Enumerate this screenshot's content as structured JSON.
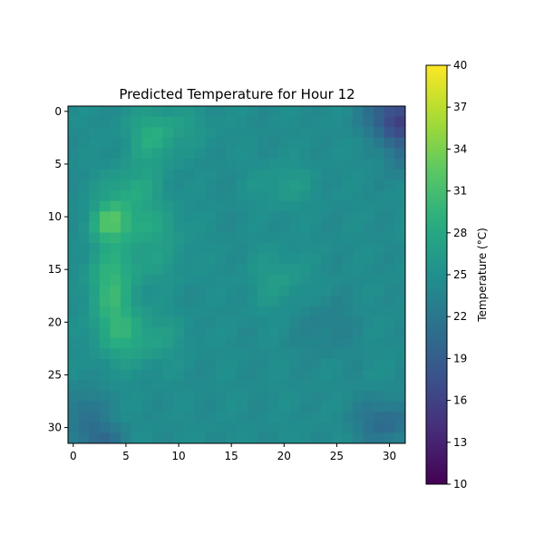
{
  "chart_data": {
    "type": "heatmap",
    "title": "Predicted Temperature for Hour 12",
    "xlabel": "",
    "ylabel": "",
    "xlim": [
      -0.5,
      31.5
    ],
    "ylim": [
      31.5,
      -0.5
    ],
    "x_ticks": [
      0,
      5,
      10,
      15,
      20,
      25,
      30
    ],
    "y_ticks": [
      0,
      5,
      10,
      15,
      20,
      25,
      30
    ],
    "colormap": "viridis",
    "grid": false,
    "colorbar": {
      "label": "Temperature (°C)",
      "vmin": 10,
      "vmax": 40,
      "ticks": [
        10,
        13,
        16,
        19,
        22,
        25,
        28,
        31,
        34,
        37,
        40
      ]
    },
    "grid_size": [
      32,
      32
    ],
    "hotspots": [
      {
        "x": 3.5,
        "y": 10.5,
        "sx": 1.3,
        "sy": 1.3,
        "amp": 6.0
      },
      {
        "x": 3.5,
        "y": 16.5,
        "sx": 1.5,
        "sy": 2.5,
        "amp": 4.0
      },
      {
        "x": 5.5,
        "y": 7.5,
        "sx": 2.0,
        "sy": 1.6,
        "amp": 3.5
      },
      {
        "x": 7.5,
        "y": 3.0,
        "sx": 1.5,
        "sy": 1.8,
        "amp": 3.0
      },
      {
        "x": 7.0,
        "y": 11.0,
        "sx": 2.5,
        "sy": 1.5,
        "amp": 3.0
      },
      {
        "x": 6.5,
        "y": 14.5,
        "sx": 3.0,
        "sy": 1.5,
        "amp": 2.0
      },
      {
        "x": 6.5,
        "y": 21.5,
        "sx": 2.5,
        "sy": 1.8,
        "amp": 3.0
      },
      {
        "x": 4.0,
        "y": 20.0,
        "sx": 1.5,
        "sy": 2.5,
        "amp": 2.5
      },
      {
        "x": 9.0,
        "y": 1.5,
        "sx": 3.0,
        "sy": 1.5,
        "amp": 2.0
      },
      {
        "x": 20.0,
        "y": 7.0,
        "sx": 2.0,
        "sy": 1.5,
        "amp": 2.0
      },
      {
        "x": 19.5,
        "y": 16.0,
        "sx": 2.0,
        "sy": 2.0,
        "amp": 2.0
      },
      {
        "x": 30.5,
        "y": 0.5,
        "sx": 2.0,
        "sy": 1.5,
        "amp": -7.0
      },
      {
        "x": 31.0,
        "y": 3.0,
        "sx": 1.0,
        "sy": 2.0,
        "amp": -4.0
      },
      {
        "x": 29.5,
        "y": 29.5,
        "sx": 2.0,
        "sy": 1.5,
        "amp": -4.0
      },
      {
        "x": 1.0,
        "y": 28.5,
        "sx": 1.5,
        "sy": 1.5,
        "amp": -3.0
      },
      {
        "x": 2.5,
        "y": 31.0,
        "sx": 1.5,
        "sy": 1.0,
        "amp": -4.0
      },
      {
        "x": 24.0,
        "y": 20.5,
        "sx": 2.0,
        "sy": 2.0,
        "amp": -1.5
      }
    ],
    "base_value": 24.5
  }
}
